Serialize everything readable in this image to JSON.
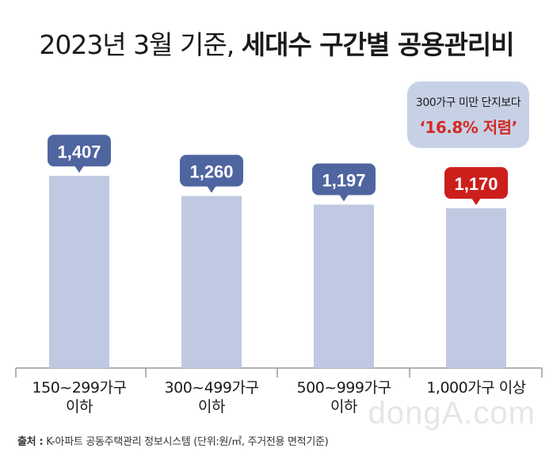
{
  "title_regular": "2023년 3월 기준, ",
  "title_bold": "세대수 구간별 공용관리비",
  "callout": {
    "line1": "300가구 미만 단지보다",
    "line2": "‘16.8% 저렴’"
  },
  "source": {
    "label": "출처 :",
    "text": " K-아파트 공동주택관리 정보시스템 (단위:원/㎡, 주거전용 면적기준)"
  },
  "watermark": "dongA.com",
  "colors": {
    "bar": "#bfc9e1",
    "badge_default": "#4f65a0",
    "badge_highlight": "#cc1e1b",
    "axis": "#999999"
  },
  "chart_data": {
    "type": "bar",
    "title": "2023년 3월 기준, 세대수 구간별 공용관리비",
    "categories": [
      "150~299가구\n이하",
      "300~499가구\n이하",
      "500~999가구\n이하",
      "1,000가구 이상"
    ],
    "values": [
      1407,
      1260,
      1197,
      1170
    ],
    "value_labels": [
      "1,407",
      "1,260",
      "1,197",
      "1,170"
    ],
    "highlight_index": 3,
    "unit": "원/㎡",
    "ylim": [
      0,
      1600
    ],
    "grid": false,
    "legend": "none"
  }
}
